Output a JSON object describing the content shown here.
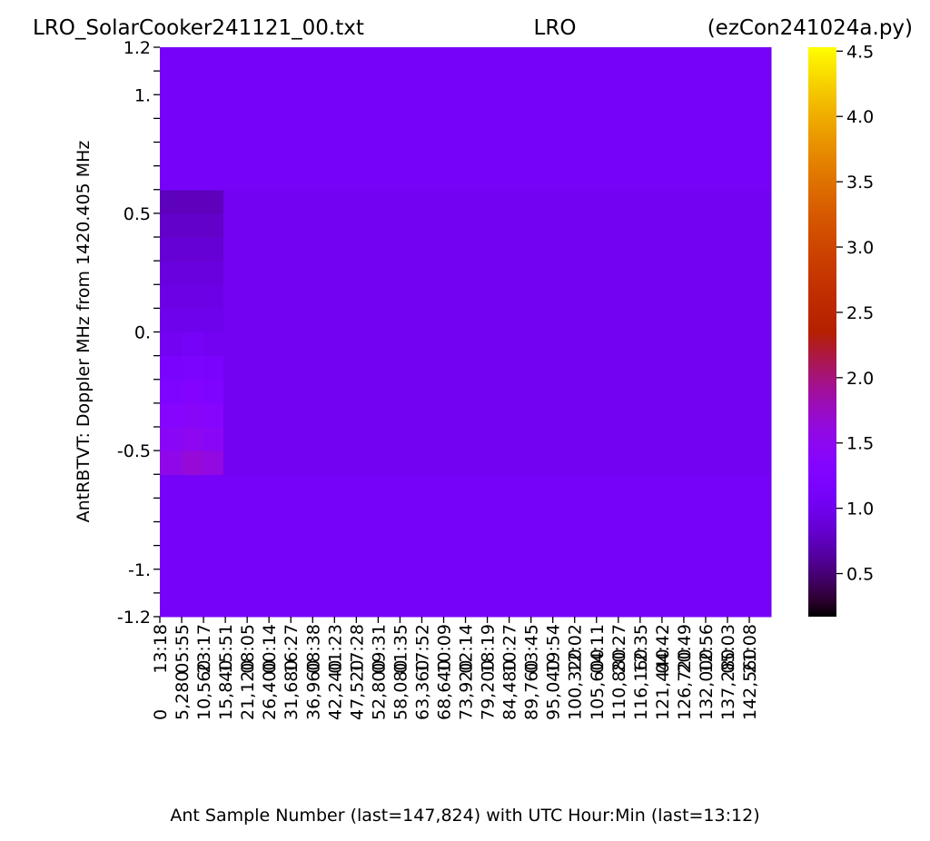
{
  "chart_data": {
    "type": "heatmap",
    "title_left": "LRO_SolarCooker241121_00.txt",
    "title_center": "LRO",
    "title_right": "(ezCon241024a.py)",
    "ylabel": "AntRBTVT:  Doppler MHz from 1420.405 MHz",
    "xlabel": "Ant Sample Number (last=147,824) with UTC Hour:Min (last=13:12)",
    "xlim": [
      0,
      147824
    ],
    "ylim": [
      -1.2,
      1.2
    ],
    "xticks": [
      0,
      {
        "value": 5280,
        "label": "5,280"
      },
      {
        "value": 10560,
        "label": "10,560"
      },
      {
        "value": 15840,
        "label": "15,840"
      },
      {
        "value": 21120,
        "label": "21,120"
      },
      {
        "value": 26400,
        "label": "26,400"
      },
      {
        "value": 31680,
        "label": "31,680"
      },
      {
        "value": 36960,
        "label": "36,960"
      },
      {
        "value": 42240,
        "label": "42,240"
      },
      {
        "value": 47520,
        "label": "47,520"
      },
      {
        "value": 52800,
        "label": "52,800"
      },
      {
        "value": 58080,
        "label": "58,080"
      },
      {
        "value": 63360,
        "label": "63,360"
      },
      {
        "value": 68640,
        "label": "68,640"
      },
      {
        "value": 73920,
        "label": "73,920"
      },
      {
        "value": 79200,
        "label": "79,200"
      },
      {
        "value": 84480,
        "label": "84,480"
      },
      {
        "value": 89760,
        "label": "89,760"
      },
      {
        "value": 95040,
        "label": "95,040"
      },
      {
        "value": 100320,
        "label": "100,320"
      },
      {
        "value": 105600,
        "label": "105,600"
      },
      {
        "value": 110880,
        "label": "110,880"
      },
      {
        "value": 116160,
        "label": "116,160"
      },
      {
        "value": 121440,
        "label": "121,440"
      },
      {
        "value": 126720,
        "label": "126,720"
      },
      {
        "value": 132000,
        "label": "132,000"
      },
      {
        "value": 137280,
        "label": "137,280"
      },
      {
        "value": 142560,
        "label": "142,560"
      }
    ],
    "xtick_times": [
      "13:18",
      "05:55",
      "23:17",
      "15:51",
      "08:05",
      "00:14",
      "16:27",
      "08:38",
      "01:23",
      "17:28",
      "09:31",
      "01:35",
      "17:52",
      "10:09",
      "02:14",
      "18:19",
      "10:27",
      "03:45",
      "19:54",
      "12:02",
      "04:11",
      "20:27",
      "12:35",
      "04:42",
      "20:49",
      "12:56",
      "05:03",
      "21:08"
    ],
    "yticks": [
      1.2,
      {
        "value": 1,
        "label": "1."
      },
      0.5,
      {
        "value": 0,
        "label": "0."
      },
      -0.5,
      {
        "value": -1,
        "label": "-1."
      },
      -1.2
    ],
    "minor_yticks": [
      -1.1,
      -0.9,
      -0.8,
      -0.7,
      -0.6,
      -0.4,
      -0.3,
      -0.2,
      -0.1,
      0.1,
      0.2,
      0.3,
      0.4,
      0.6,
      0.7,
      0.8,
      0.9,
      1.1
    ],
    "x_edges": [
      0,
      5280,
      10560,
      15400,
      26400,
      36960,
      47520,
      58080,
      68640,
      79200,
      89760,
      100320,
      110880,
      121440,
      132000,
      147824
    ],
    "y_edges": [
      -1.2,
      -0.6,
      -0.5,
      -0.4,
      -0.3,
      -0.2,
      -0.1,
      0,
      0.1,
      0.2,
      0.3,
      0.4,
      0.5,
      0.6,
      1.2
    ],
    "z": [
      [
        1.1,
        1.1,
        1.1,
        1.1,
        1.1,
        1.1,
        1.1,
        1.1,
        1.1,
        1.1,
        1.1,
        1.1,
        1.1,
        1.1,
        1.1
      ],
      [
        1.55,
        1.65,
        1.6,
        1.05,
        1.05,
        1.05,
        1.05,
        1.05,
        1.05,
        1.05,
        1.05,
        1.05,
        1.05,
        1.05,
        1.05
      ],
      [
        1.45,
        1.5,
        1.45,
        1.05,
        1.05,
        1.05,
        1.05,
        1.05,
        1.05,
        1.05,
        1.05,
        1.05,
        1.05,
        1.05,
        1.05
      ],
      [
        1.35,
        1.4,
        1.35,
        1.05,
        1.05,
        1.05,
        1.05,
        1.05,
        1.05,
        1.05,
        1.05,
        1.05,
        1.05,
        1.05,
        1.05
      ],
      [
        1.25,
        1.3,
        1.25,
        1.05,
        1.05,
        1.05,
        1.05,
        1.05,
        1.05,
        1.05,
        1.05,
        1.05,
        1.05,
        1.05,
        1.05
      ],
      [
        1.15,
        1.2,
        1.15,
        1.05,
        1.05,
        1.05,
        1.05,
        1.05,
        1.05,
        1.05,
        1.05,
        1.05,
        1.05,
        1.05,
        1.05
      ],
      [
        1.05,
        1.1,
        1.05,
        1.05,
        1.05,
        1.05,
        1.05,
        1.05,
        1.05,
        1.05,
        1.05,
        1.05,
        1.05,
        1.05,
        1.05
      ],
      [
        1.0,
        1.0,
        1.0,
        1.05,
        1.05,
        1.05,
        1.05,
        1.05,
        1.05,
        1.05,
        1.05,
        1.05,
        1.05,
        1.05,
        1.05
      ],
      [
        0.95,
        0.95,
        0.95,
        1.05,
        1.05,
        1.05,
        1.05,
        1.05,
        1.05,
        1.05,
        1.05,
        1.05,
        1.05,
        1.05,
        1.05
      ],
      [
        0.9,
        0.9,
        0.9,
        1.05,
        1.05,
        1.05,
        1.05,
        1.05,
        1.05,
        1.05,
        1.05,
        1.05,
        1.05,
        1.05,
        1.05
      ],
      [
        0.85,
        0.85,
        0.85,
        1.05,
        1.05,
        1.05,
        1.05,
        1.05,
        1.05,
        1.05,
        1.05,
        1.05,
        1.05,
        1.05,
        1.05
      ],
      [
        0.8,
        0.8,
        0.8,
        1.05,
        1.05,
        1.05,
        1.05,
        1.05,
        1.05,
        1.05,
        1.05,
        1.05,
        1.05,
        1.05,
        1.05
      ],
      [
        0.75,
        0.75,
        0.75,
        1.05,
        1.05,
        1.05,
        1.05,
        1.05,
        1.05,
        1.05,
        1.05,
        1.05,
        1.05,
        1.05,
        1.05
      ],
      [
        1.1,
        1.1,
        1.1,
        1.1,
        1.1,
        1.1,
        1.1,
        1.1,
        1.1,
        1.1,
        1.1,
        1.1,
        1.1,
        1.1,
        1.1
      ]
    ],
    "colormap": "gnuplot",
    "colorbar": {
      "clim": [
        0.17,
        4.53
      ],
      "ticks": [
        0.5,
        {
          "value": 1,
          "label": "1.0"
        },
        1.5,
        {
          "value": 2,
          "label": "2.0"
        },
        2.5,
        {
          "value": 3,
          "label": "3.0"
        },
        3.5,
        {
          "value": 4,
          "label": "4.0"
        },
        4.5
      ]
    }
  }
}
